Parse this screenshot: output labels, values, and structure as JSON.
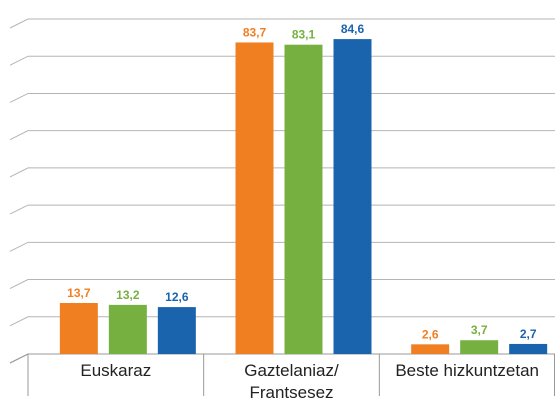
{
  "chart_data": {
    "type": "bar",
    "categories": [
      "Euskaraz",
      "Gaztelaniaz/\nFrantsesez",
      "Beste hizkuntzetan"
    ],
    "series": [
      {
        "color": "#f07f22",
        "values": [
          13.7,
          83.7,
          2.6
        ],
        "value_labels": [
          "13,7",
          "83,7",
          "2,6"
        ]
      },
      {
        "color": "#76b041",
        "values": [
          13.2,
          83.1,
          3.7
        ],
        "value_labels": [
          "13,2",
          "83,1",
          "3,7"
        ]
      },
      {
        "color": "#1a63ad",
        "values": [
          12.6,
          84.6,
          2.7
        ],
        "value_labels": [
          "12,6",
          "84,6",
          "2,7"
        ]
      }
    ],
    "ylim": [
      0,
      90
    ],
    "yticks": [
      0,
      10,
      20,
      30,
      40,
      50,
      60,
      70,
      80,
      90
    ],
    "grid": true
  }
}
